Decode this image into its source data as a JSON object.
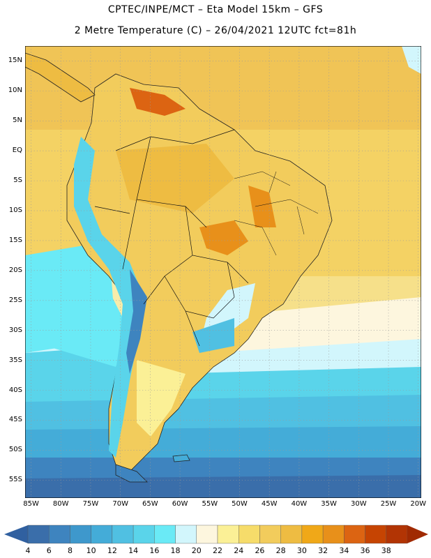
{
  "header": {
    "line1": "CPTEC/INPE/MCT –  Eta Model 15km – GFS",
    "line2": "2 Metre Temperature (C) – 26/04/2021 12UTC fct=81h"
  },
  "map": {
    "lat_labels": [
      "15N",
      "10N",
      "5N",
      "EQ",
      "5S",
      "10S",
      "15S",
      "20S",
      "25S",
      "30S",
      "35S",
      "40S",
      "45S",
      "50S",
      "55S"
    ],
    "lon_labels": [
      "85W",
      "80W",
      "75W",
      "70W",
      "65W",
      "60W",
      "55W",
      "50W",
      "45W",
      "40W",
      "35W",
      "30W",
      "25W",
      "20W"
    ],
    "lat_range": [
      -58,
      17.5
    ],
    "lon_range": [
      -86,
      -19.5
    ]
  },
  "legend": {
    "values": [
      "4",
      "6",
      "8",
      "10",
      "12",
      "14",
      "16",
      "18",
      "20",
      "22",
      "24",
      "26",
      "28",
      "30",
      "32",
      "34",
      "36",
      "38"
    ],
    "colors": [
      "#3a6eaa",
      "#3e84bf",
      "#3e98cc",
      "#44acd8",
      "#50c0e2",
      "#5ad4ea",
      "#6aeaf6",
      "#d2f6fc",
      "#fdf6de",
      "#fbf096",
      "#f6dc6a",
      "#f2cc5c",
      "#eebc42",
      "#f0a818",
      "#e8901a",
      "#dc6412",
      "#c64402",
      "#b23404"
    ],
    "low_color": "#3060a0",
    "high_color": "#a02a02"
  }
}
